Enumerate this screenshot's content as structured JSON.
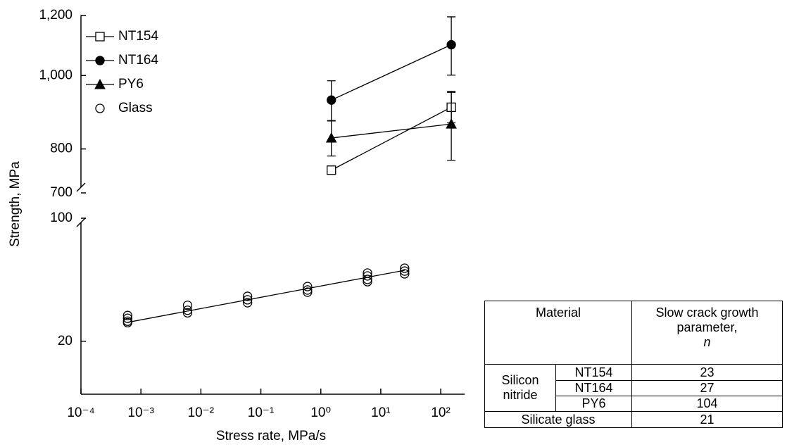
{
  "chart_data": [
    {
      "type": "line",
      "ylabel": "Strength, MPa",
      "yscale": "log",
      "xscale": "log",
      "x": [
        1.5,
        150
      ],
      "xlim": [
        0.0001,
        250
      ],
      "ylim": [
        700,
        1200
      ],
      "yticks": [
        {
          "value": 1200,
          "label": "1,200"
        },
        {
          "value": 1000,
          "label": "1,000"
        },
        800,
        700
      ],
      "legend": "upper left",
      "series": [
        {
          "name": "NT154",
          "color": "#000000",
          "marker": "square-open",
          "values": [
            750,
            908
          ],
          "errors": [
            null,
            42
          ]
        },
        {
          "name": "NT164",
          "color": "#000000",
          "marker": "circle-filled",
          "values": [
            928,
            1098
          ],
          "errors": [
            56,
            97
          ]
        },
        {
          "name": "PY6",
          "color": "#000000",
          "marker": "triangle-filled",
          "values": [
            827,
            863
          ],
          "errors": [
            44,
            90
          ]
        }
      ]
    },
    {
      "type": "scatter",
      "xlabel": "Stress rate, MPa/s",
      "xscale": "log",
      "yscale": "log",
      "xlim": [
        0.0001,
        250
      ],
      "ylim": [
        10,
        100
      ],
      "xticks": [
        {
          "value": 0.0001,
          "label": "10⁻⁴"
        },
        {
          "value": 0.001,
          "label": "10⁻³"
        },
        {
          "value": 0.01,
          "label": "10⁻²"
        },
        {
          "value": 0.1,
          "label": "10⁻¹"
        },
        {
          "value": 1,
          "label": "10⁰"
        },
        {
          "value": 10,
          "label": "10¹"
        },
        {
          "value": 100,
          "label": "10²"
        }
      ],
      "yticks": [
        100,
        20
      ],
      "series": [
        {
          "name": "Glass",
          "color": "#000000",
          "marker": "circle-open",
          "x": [
            0.0006,
            0.0006,
            0.0006,
            0.0006,
            0.006,
            0.006,
            0.006,
            0.06,
            0.06,
            0.06,
            0.6,
            0.6,
            0.6,
            6,
            6,
            6,
            6,
            25,
            25,
            25
          ],
          "values": [
            28,
            27,
            26,
            25.5,
            32,
            30,
            29,
            36,
            34.4,
            33.1,
            40.9,
            39.1,
            38,
            48.8,
            47,
            44.9,
            43.6,
            52,
            50.1,
            48.3
          ]
        }
      ],
      "fit": {
        "x": [
          0.0006,
          25
        ],
        "values": [
          25.6,
          50.6
        ]
      }
    }
  ],
  "table": {
    "header": [
      "Material",
      [
        "Slow crack growth",
        "parameter,",
        "n"
      ]
    ],
    "groups": [
      {
        "label": "Silicon nitride",
        "rows": [
          [
            "NT154",
            23
          ],
          [
            "NT164",
            27
          ],
          [
            "PY6",
            104
          ]
        ]
      },
      {
        "label": "Silicate glass",
        "value": 21
      }
    ]
  }
}
